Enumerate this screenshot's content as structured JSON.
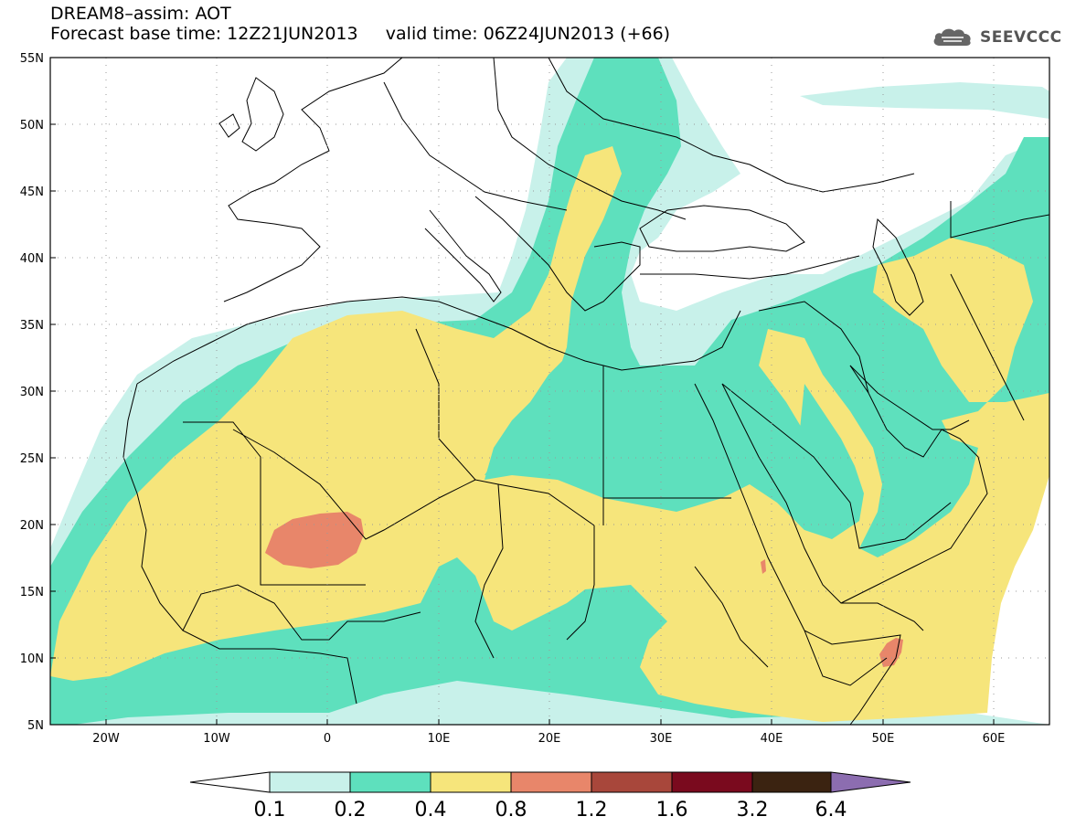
{
  "title": {
    "line1": "DREAM8–assim: AOT",
    "line2": "Forecast base time: 12Z21JUN2013     valid time: 06Z24JUN2013 (+66)"
  },
  "logo": {
    "text": "SEEVCCC",
    "icon": "cloud-icon"
  },
  "map": {
    "lat_labels": [
      "55N",
      "50N",
      "45N",
      "40N",
      "35N",
      "30N",
      "25N",
      "20N",
      "15N",
      "10N",
      "5N"
    ],
    "lon_labels": [
      "20W",
      "10W",
      "0",
      "10E",
      "20E",
      "30E",
      "40E",
      "50E",
      "60E"
    ],
    "lon_range": [
      -25,
      65
    ],
    "lat_range": [
      5,
      55
    ],
    "grid": true
  },
  "colorbar": {
    "labels": [
      "0.1",
      "0.2",
      "0.4",
      "0.8",
      "1.2",
      "1.6",
      "3.2",
      "6.4"
    ],
    "colors": [
      "#ffffff",
      "#c8f1ea",
      "#5ee0bd",
      "#f6e57b",
      "#e8866a",
      "#a8473b",
      "#7a0a1e",
      "#3b2311",
      "#8c6db0"
    ]
  }
}
